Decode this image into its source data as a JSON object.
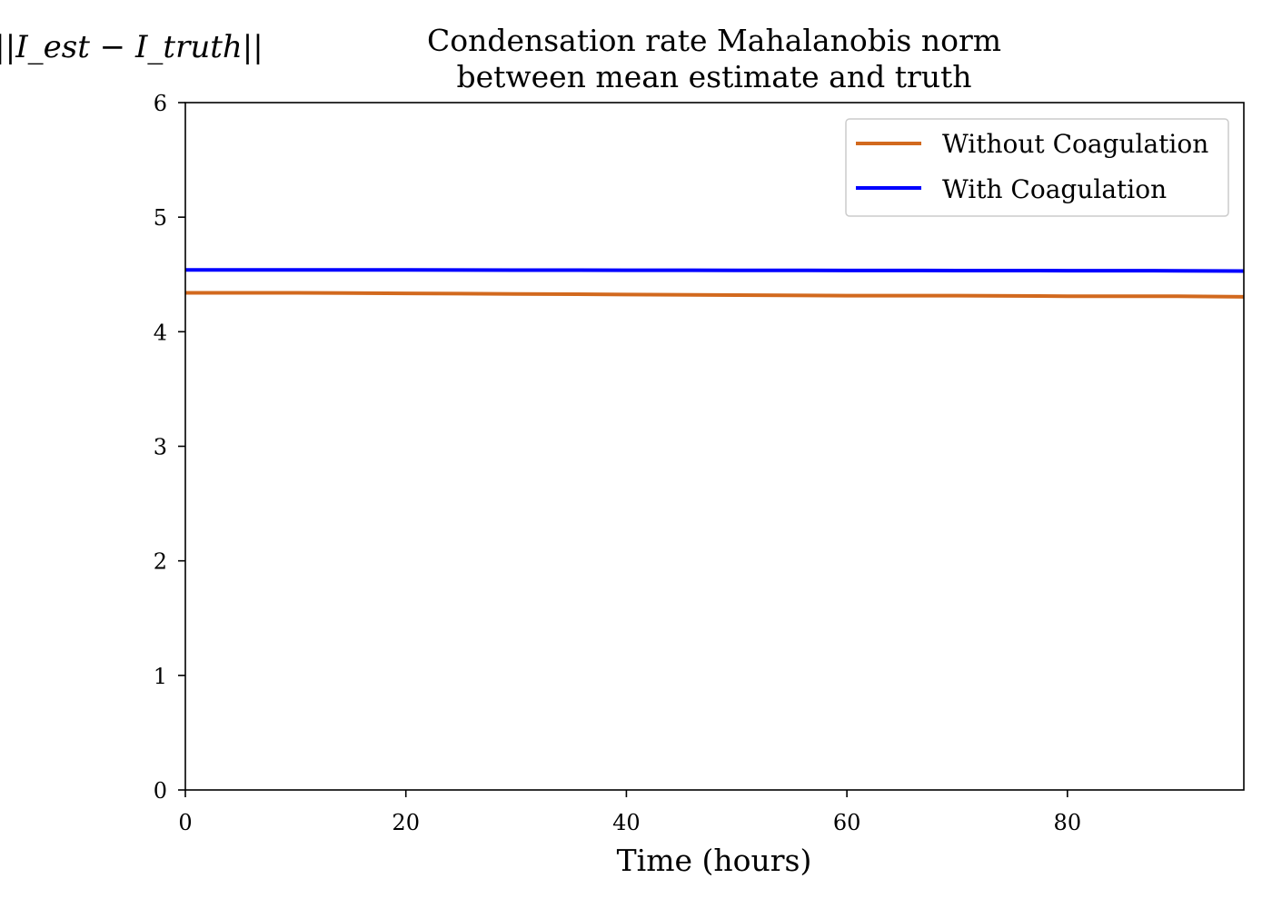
{
  "chart_data": {
    "type": "line",
    "title": [
      "Condensation rate Mahalanobis norm",
      "between mean estimate and truth"
    ],
    "xlabel": "Time (hours)",
    "ylabel": "||I_est − I_truth||",
    "xlim": [
      0,
      96
    ],
    "ylim": [
      0,
      6
    ],
    "xticks": [
      0,
      20,
      40,
      60,
      80
    ],
    "yticks": [
      0,
      1,
      2,
      3,
      4,
      5,
      6
    ],
    "grid": false,
    "legend_position": "top-right",
    "series": [
      {
        "name": "Without Coagulation",
        "color": "#d2691e",
        "x": [
          0,
          10,
          20,
          30,
          40,
          50,
          60,
          70,
          80,
          90,
          96
        ],
        "y": [
          4.34,
          4.34,
          4.335,
          4.33,
          4.325,
          4.32,
          4.315,
          4.315,
          4.31,
          4.31,
          4.305
        ]
      },
      {
        "name": "With Coagulation",
        "color": "#0000ff",
        "x": [
          0,
          10,
          20,
          30,
          40,
          50,
          60,
          70,
          80,
          90,
          96
        ],
        "y": [
          4.54,
          4.54,
          4.54,
          4.538,
          4.537,
          4.536,
          4.535,
          4.534,
          4.533,
          4.532,
          4.53
        ]
      }
    ]
  }
}
